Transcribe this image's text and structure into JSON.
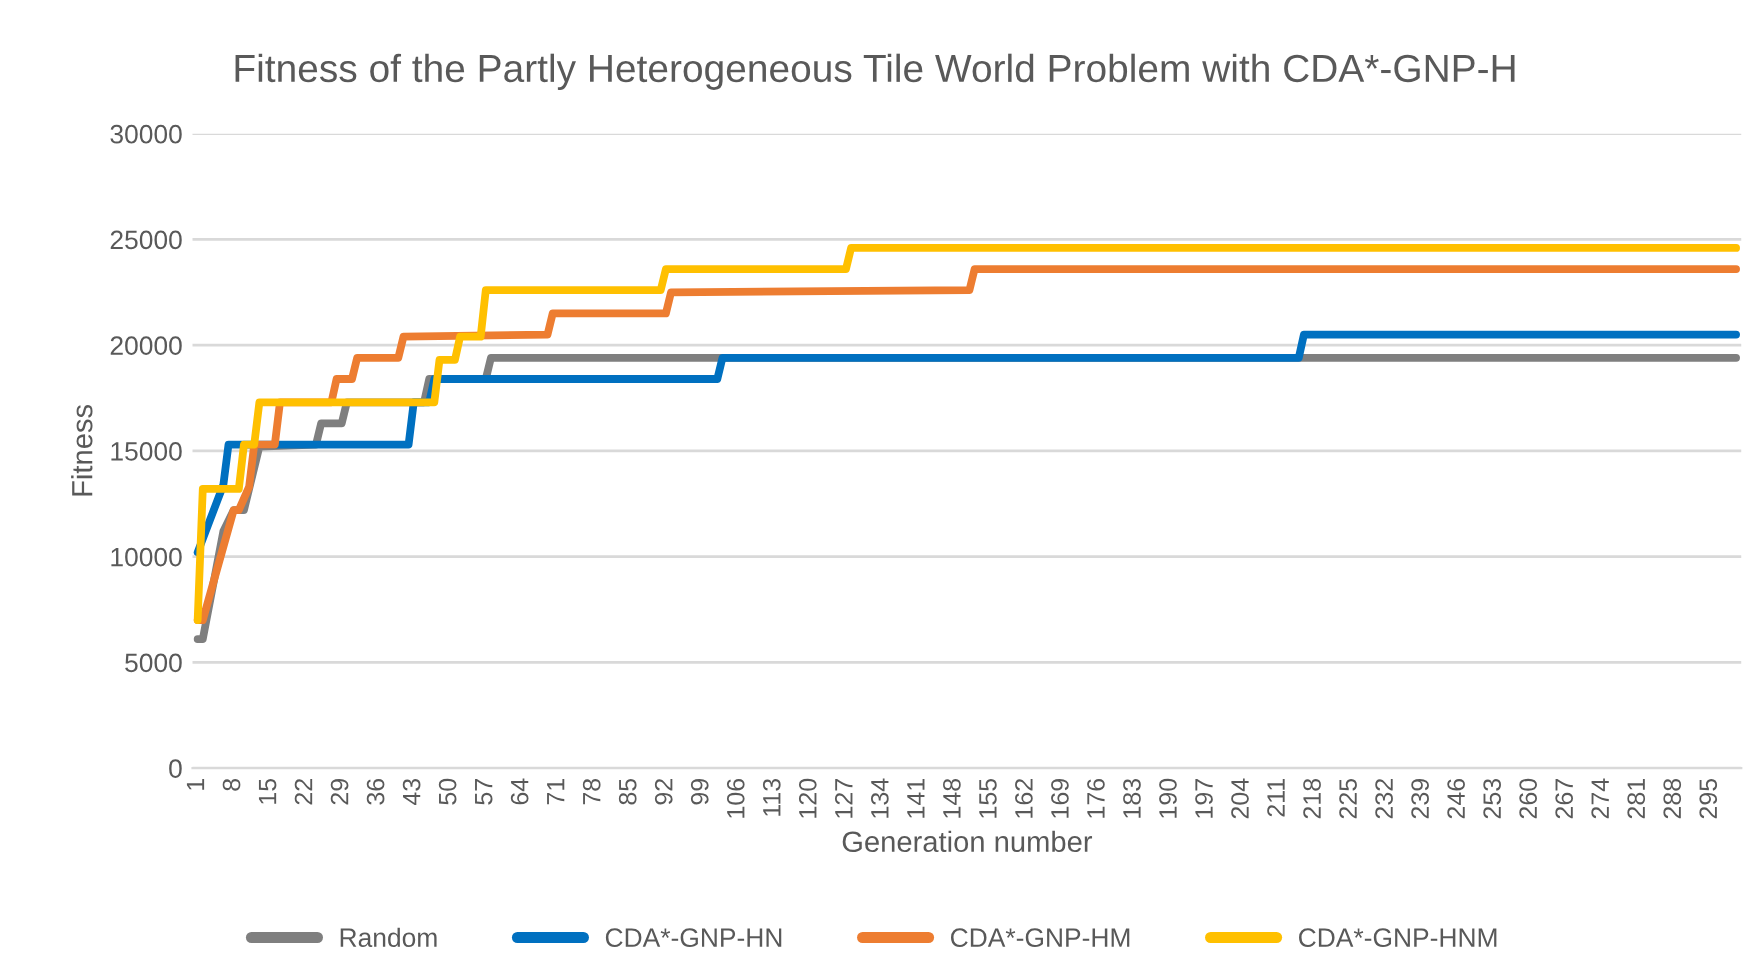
{
  "chart_data": {
    "type": "line",
    "title": "Fitness of the Partly Heterogeneous Tile World Problem with CDA*-GNP-H",
    "xlabel": "Generation number",
    "ylabel": "Fitness",
    "xlim": [
      0,
      301
    ],
    "xticks": [
      1,
      8,
      15,
      22,
      29,
      36,
      43,
      50,
      57,
      64,
      71,
      78,
      85,
      92,
      99,
      106,
      113,
      120,
      127,
      134,
      141,
      148,
      155,
      162,
      169,
      176,
      183,
      190,
      197,
      204,
      211,
      218,
      225,
      232,
      239,
      246,
      253,
      260,
      267,
      274,
      281,
      288,
      295
    ],
    "ylim": [
      0,
      30000
    ],
    "yticks": [
      0,
      5000,
      10000,
      15000,
      20000,
      25000,
      30000
    ],
    "grid": "y",
    "legend": "bottom",
    "marker": "none",
    "line_style": "solid",
    "series": [
      {
        "name": "Random",
        "color": "#7f7f7f",
        "x": [
          1,
          2,
          6,
          8,
          10,
          13,
          24,
          25,
          29,
          30,
          45,
          46,
          57,
          58,
          300
        ],
        "values": [
          6100,
          6100,
          11200,
          12200,
          12200,
          15200,
          15300,
          16300,
          16300,
          17300,
          17300,
          18400,
          18400,
          19400,
          19400
        ]
      },
      {
        "name": "CDA*-GNP-HN",
        "color": "#0070c0",
        "x": [
          1,
          6,
          7,
          42,
          43,
          46,
          47,
          102,
          103,
          215,
          216,
          300
        ],
        "values": [
          10200,
          13400,
          15300,
          15300,
          17300,
          17300,
          18400,
          18400,
          19400,
          19400,
          20500,
          20500
        ]
      },
      {
        "name": "CDA*-GNP-HM",
        "color": "#ed7d31",
        "x": [
          1,
          2,
          8,
          9,
          11,
          12,
          16,
          17,
          27,
          28,
          31,
          32,
          40,
          41,
          69,
          70,
          92,
          93,
          151,
          152,
          300
        ],
        "values": [
          7000,
          7000,
          12200,
          12200,
          13300,
          15300,
          15300,
          17300,
          17300,
          18400,
          18400,
          19400,
          19400,
          20400,
          20500,
          21500,
          21500,
          22500,
          22600,
          23600,
          23600
        ]
      },
      {
        "name": "CDA*-GNP-HNM",
        "color": "#ffc000",
        "x": [
          1,
          2,
          9,
          10,
          12,
          13,
          47,
          48,
          51,
          52,
          56,
          57,
          91,
          92,
          127,
          128,
          300
        ],
        "values": [
          7000,
          13200,
          13200,
          15300,
          15300,
          17300,
          17300,
          19300,
          19300,
          20400,
          20400,
          22600,
          22600,
          23600,
          23600,
          24600,
          24600
        ]
      }
    ]
  }
}
